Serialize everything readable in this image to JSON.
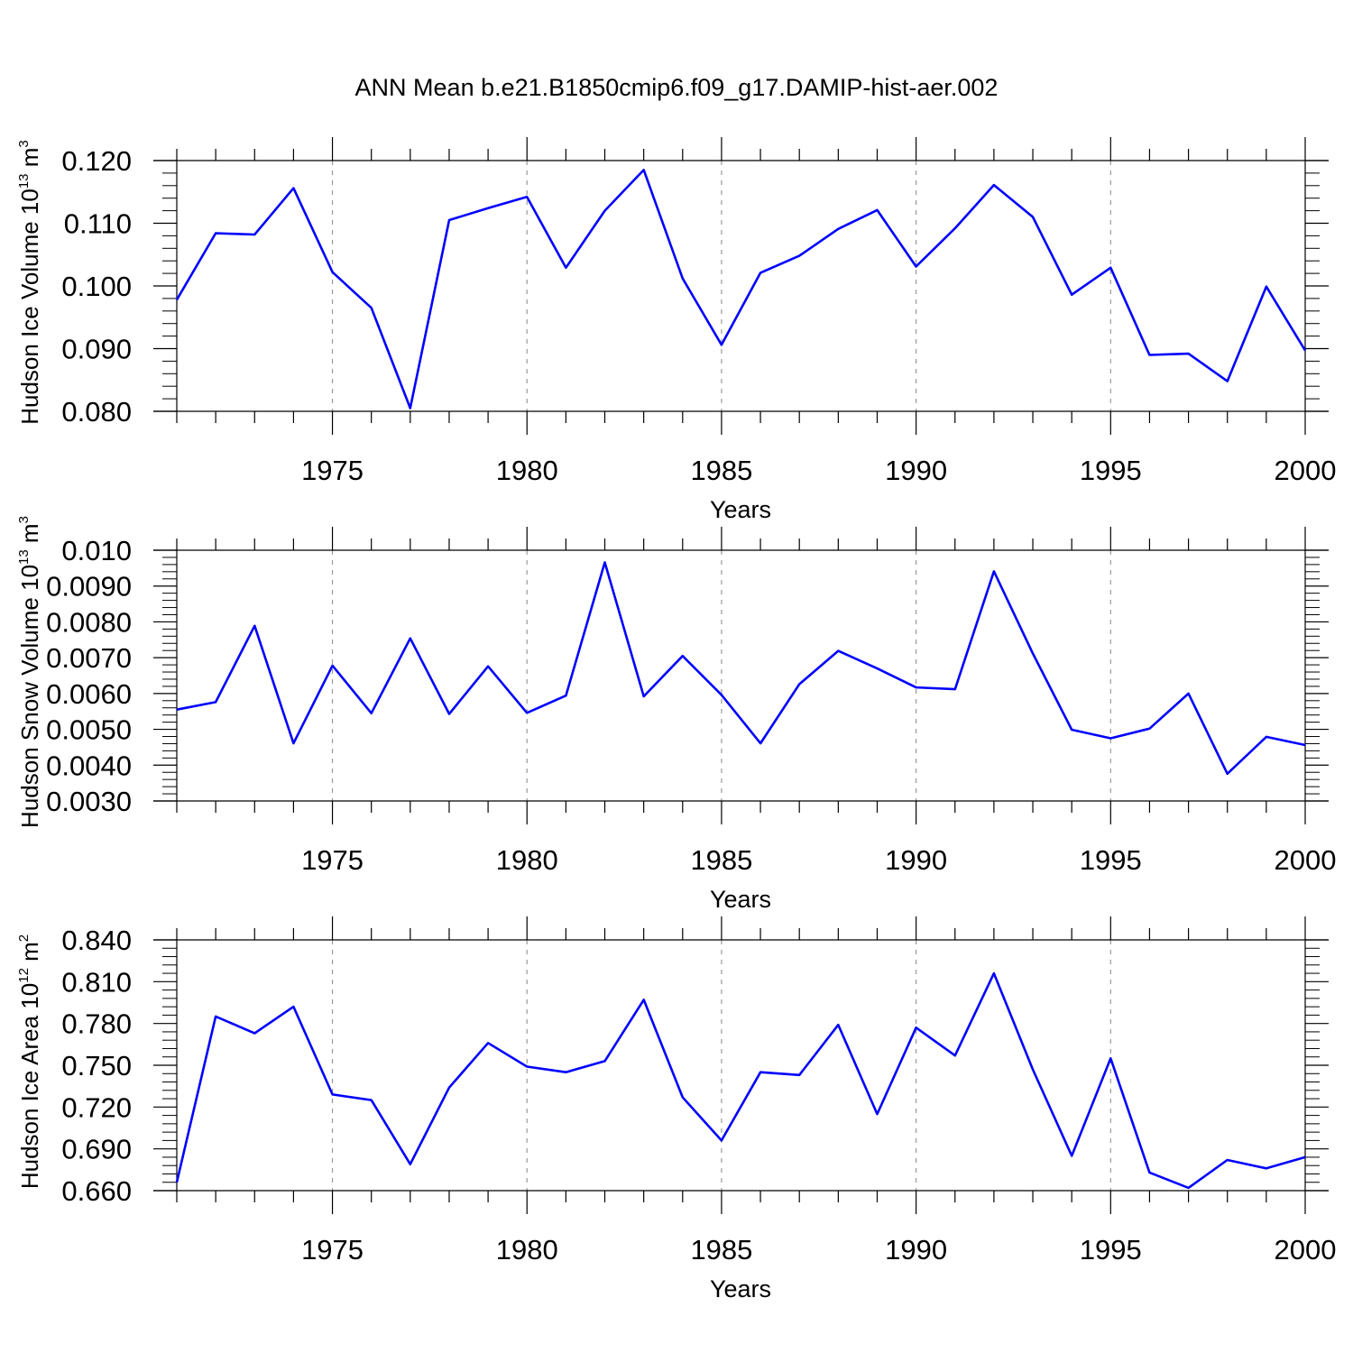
{
  "title": "ANN Mean b.e21.B1850cmip6.f09_g17.DAMIP-hist-aer.002",
  "colors": {
    "line": "#0000ff",
    "axis": "#000000",
    "grid": "#999999"
  },
  "chart_data": [
    {
      "type": "line",
      "ylabel": {
        "main": "Hudson Ice Volume 10",
        "sup": "13",
        "unit": " m",
        "unit_sup": "3"
      },
      "xlabel": "Years",
      "xlim": [
        1971,
        2000
      ],
      "ylim": [
        0.08,
        0.12
      ],
      "y_ticks": [
        "0.080",
        "0.090",
        "0.100",
        "0.110",
        "0.120"
      ],
      "y_tick_values": [
        0.08,
        0.09,
        0.1,
        0.11,
        0.12
      ],
      "x_ticks": [
        1975,
        1980,
        1985,
        1990,
        1995,
        2000
      ],
      "x_tick_labels": [
        "1975",
        "1980",
        "1985",
        "1990",
        "1995",
        "2000"
      ],
      "series": [
        {
          "name": "Hudson Ice Volume",
          "x": [
            1971,
            1972,
            1973,
            1974,
            1975,
            1976,
            1977,
            1978,
            1979,
            1980,
            1981,
            1982,
            1983,
            1984,
            1985,
            1986,
            1987,
            1988,
            1989,
            1990,
            1991,
            1992,
            1993,
            1994,
            1995,
            1996,
            1997,
            1998,
            1999,
            2000
          ],
          "values": [
            0.0978,
            0.1084,
            0.1082,
            0.1156,
            0.1022,
            0.0965,
            0.0805,
            0.1105,
            0.1124,
            0.1142,
            0.1029,
            0.112,
            0.1185,
            0.1012,
            0.0906,
            0.1021,
            0.1048,
            0.1091,
            0.1121,
            0.1031,
            0.1092,
            0.1161,
            0.111,
            0.0986,
            0.1029,
            0.089,
            0.0892,
            0.0848,
            0.0999,
            0.0897
          ]
        }
      ]
    },
    {
      "type": "line",
      "ylabel": {
        "main": "Hudson Snow Volume 10",
        "sup": "13",
        "unit": " m",
        "unit_sup": "3"
      },
      "xlabel": "Years",
      "xlim": [
        1971,
        2000
      ],
      "ylim": [
        0.003,
        0.01
      ],
      "y_ticks": [
        "0.0030",
        "0.0040",
        "0.0050",
        "0.0060",
        "0.0070",
        "0.0080",
        "0.0090",
        "0.010"
      ],
      "y_tick_values": [
        0.003,
        0.004,
        0.005,
        0.006,
        0.007,
        0.008,
        0.009,
        0.01
      ],
      "x_ticks": [
        1975,
        1980,
        1985,
        1990,
        1995,
        2000
      ],
      "x_tick_labels": [
        "1975",
        "1980",
        "1985",
        "1990",
        "1995",
        "2000"
      ],
      "series": [
        {
          "name": "Hudson Snow Volume",
          "x": [
            1971,
            1972,
            1973,
            1974,
            1975,
            1976,
            1977,
            1978,
            1979,
            1980,
            1981,
            1982,
            1983,
            1984,
            1985,
            1986,
            1987,
            1988,
            1989,
            1990,
            1991,
            1992,
            1993,
            1994,
            1995,
            1996,
            1997,
            1998,
            1999,
            2000
          ],
          "values": [
            0.00555,
            0.00576,
            0.00789,
            0.00461,
            0.00678,
            0.00545,
            0.00754,
            0.00543,
            0.00676,
            0.00546,
            0.00594,
            0.00966,
            0.00592,
            0.00705,
            0.00596,
            0.00461,
            0.00626,
            0.00719,
            0.0067,
            0.00617,
            0.00612,
            0.00941,
            0.00712,
            0.00499,
            0.00475,
            0.00502,
            0.006,
            0.00376,
            0.00479,
            0.00456
          ]
        }
      ]
    },
    {
      "type": "line",
      "ylabel": {
        "main": "Hudson Ice Area 10",
        "sup": "12",
        "unit": " m",
        "unit_sup": "2"
      },
      "xlabel": "Years",
      "xlim": [
        1971,
        2000
      ],
      "ylim": [
        0.66,
        0.84
      ],
      "y_ticks": [
        "0.660",
        "0.690",
        "0.720",
        "0.750",
        "0.780",
        "0.810",
        "0.840"
      ],
      "y_tick_values": [
        0.66,
        0.69,
        0.72,
        0.75,
        0.78,
        0.81,
        0.84
      ],
      "x_ticks": [
        1975,
        1980,
        1985,
        1990,
        1995,
        2000
      ],
      "x_tick_labels": [
        "1975",
        "1980",
        "1985",
        "1990",
        "1995",
        "2000"
      ],
      "series": [
        {
          "name": "Hudson Ice Area",
          "x": [
            1971,
            1972,
            1973,
            1974,
            1975,
            1976,
            1977,
            1978,
            1979,
            1980,
            1981,
            1982,
            1983,
            1984,
            1985,
            1986,
            1987,
            1988,
            1989,
            1990,
            1991,
            1992,
            1993,
            1994,
            1995,
            1996,
            1997,
            1998,
            1999,
            2000
          ],
          "values": [
            0.666,
            0.785,
            0.773,
            0.792,
            0.729,
            0.725,
            0.679,
            0.734,
            0.766,
            0.749,
            0.745,
            0.753,
            0.797,
            0.727,
            0.696,
            0.745,
            0.743,
            0.779,
            0.715,
            0.777,
            0.757,
            0.816,
            0.747,
            0.685,
            0.755,
            0.673,
            0.662,
            0.682,
            0.676,
            0.684
          ]
        }
      ]
    }
  ]
}
